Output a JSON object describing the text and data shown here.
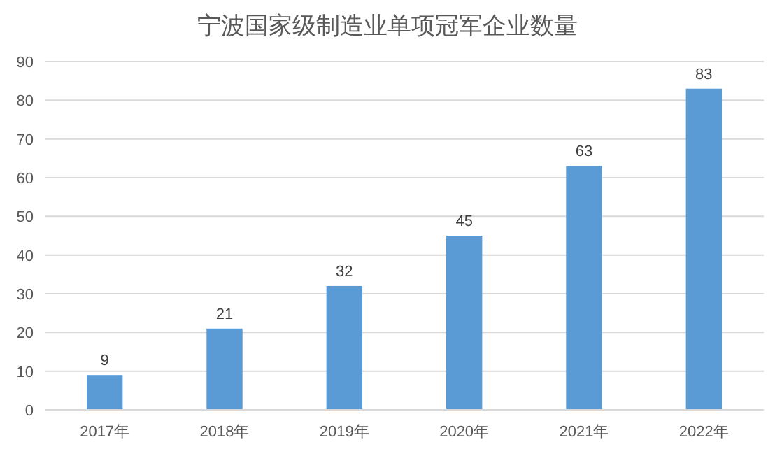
{
  "chart_data": {
    "type": "bar",
    "title": "宁波国家级制造业单项冠军企业数量",
    "categories": [
      "2017年",
      "2018年",
      "2019年",
      "2020年",
      "2021年",
      "2022年"
    ],
    "values": [
      9,
      21,
      32,
      45,
      63,
      83
    ],
    "color": "#5b9bd5",
    "ylim": [
      0,
      90
    ],
    "yticks": [
      0,
      10,
      20,
      30,
      40,
      50,
      60,
      70,
      80,
      90
    ],
    "grid": "y",
    "data_labels": true
  }
}
